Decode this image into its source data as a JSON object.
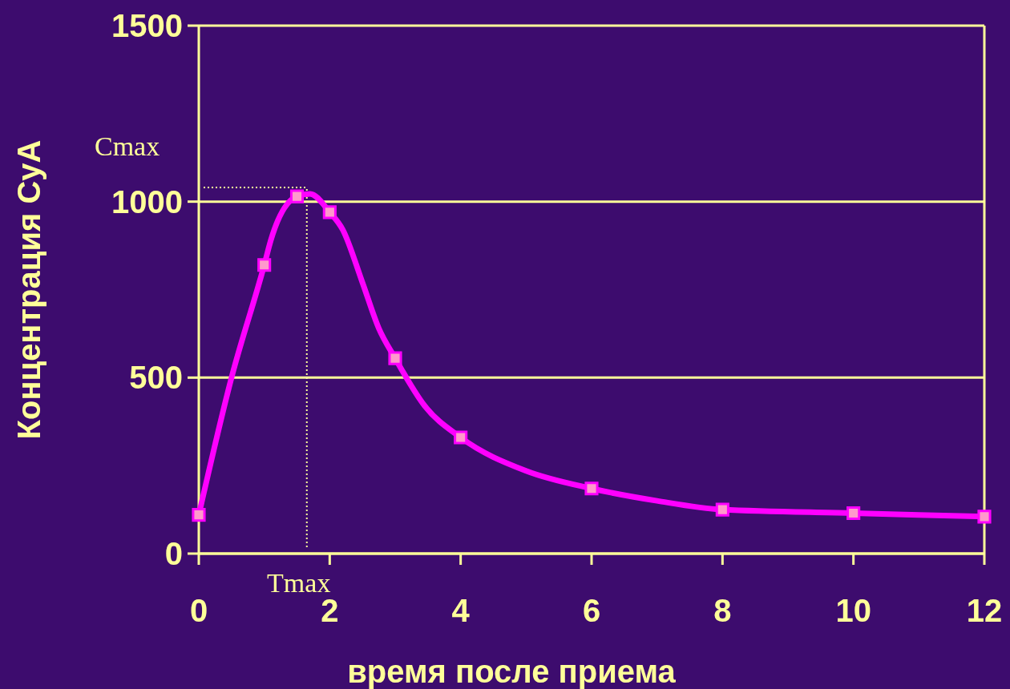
{
  "chart_data": {
    "type": "line",
    "xlabel": "время после приема",
    "ylabel": "Концентрация CyA",
    "series": [
      {
        "color": "#ff00ff",
        "marker": "none",
        "x": [
          0,
          0.5,
          1,
          1.1,
          1.5,
          1.7,
          2,
          2.2,
          2.5,
          2.75,
          3,
          3.45,
          4,
          5,
          6,
          7,
          8,
          10,
          12
        ],
        "values": [
          110,
          500,
          820,
          890,
          1015,
          1022,
          970,
          920,
          770,
          640,
          555,
          420,
          330,
          235,
          185,
          150,
          125,
          115,
          105
        ]
      },
      {
        "type": "scatter",
        "color": "#ff99cc",
        "marker": "square",
        "x": [
          0,
          1,
          1.5,
          2,
          3,
          4,
          6,
          8,
          10,
          12
        ],
        "values": [
          110,
          820,
          1015,
          970,
          555,
          330,
          185,
          125,
          115,
          105
        ]
      }
    ],
    "xlim": [
      0,
      12
    ],
    "xticks": [
      0,
      2,
      4,
      6,
      8,
      10,
      12
    ],
    "ylim": [
      0,
      1500
    ],
    "yticks": [
      0,
      500,
      1000,
      1500
    ],
    "grid": "y",
    "ref_lines": [
      {
        "axis": "y",
        "value": 1040,
        "label": "Cmax",
        "color": "#ffff99",
        "line_style": "dotted"
      },
      {
        "axis": "x",
        "value": 1.65,
        "label": "Tmax",
        "color": "#ffff99",
        "line_style": "dotted"
      }
    ]
  }
}
